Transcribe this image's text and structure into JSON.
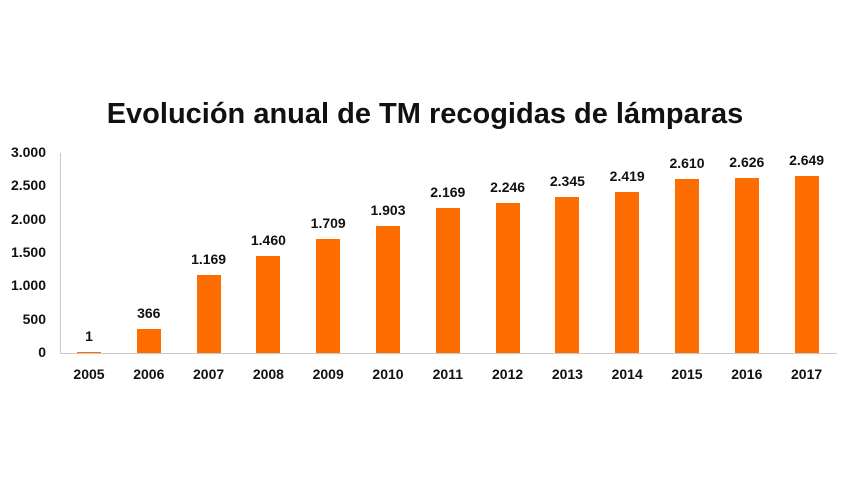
{
  "chart_data": {
    "type": "bar",
    "title": "Evolución anual de TM recogidas de lámparas",
    "xlabel": "",
    "ylabel": "",
    "ylim": [
      0,
      3000
    ],
    "yticks": [
      "0",
      "500",
      "1.000",
      "1.500",
      "2.000",
      "2.500",
      "3.000"
    ],
    "categories": [
      "2005",
      "2006",
      "2007",
      "2008",
      "2009",
      "2010",
      "2011",
      "2012",
      "2013",
      "2014",
      "2015",
      "2016",
      "2017"
    ],
    "values": [
      1,
      366,
      1169,
      1460,
      1709,
      1903,
      2169,
      2246,
      2345,
      2419,
      2610,
      2626,
      2649
    ],
    "value_labels": [
      "1",
      "366",
      "1.169",
      "1.460",
      "1.709",
      "1.903",
      "2.169",
      "2.246",
      "2.345",
      "2.419",
      "2.610",
      "2.626",
      "2.649"
    ],
    "bar_color": "#ff6d00",
    "grid": false,
    "legend": null
  }
}
